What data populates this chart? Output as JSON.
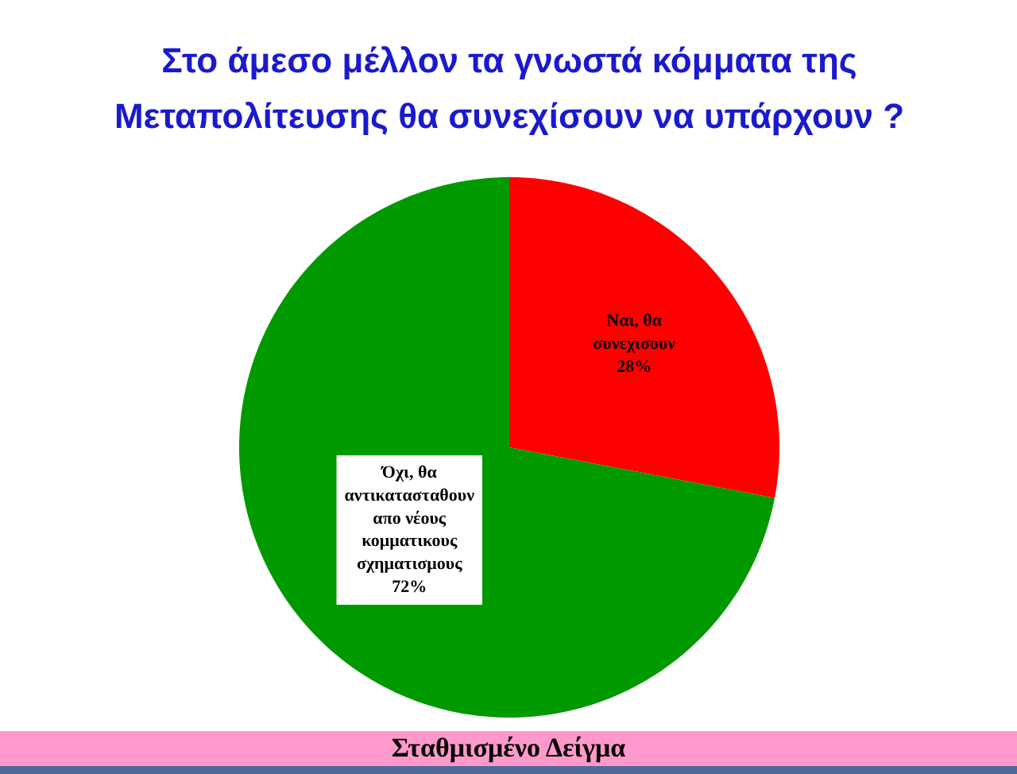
{
  "chart_data": {
    "type": "pie",
    "title": "Στο άμεσο μέλλον τα γνωστά κόμματα της Μεταπολίτευσης θα συνεχίσουν να υπάρχουν ?",
    "categories": [
      "Ναι, θα συνεχισουν",
      "Όχι, θα αντικατασταθουν απο νέους κομματικους σχηματισμους"
    ],
    "values": [
      28,
      72
    ],
    "colors": [
      "#ff0000",
      "#009900"
    ],
    "value_labels": [
      "28%",
      "72%"
    ],
    "annotations": [
      "Σταθμισμένο Δείγμα"
    ]
  }
}
